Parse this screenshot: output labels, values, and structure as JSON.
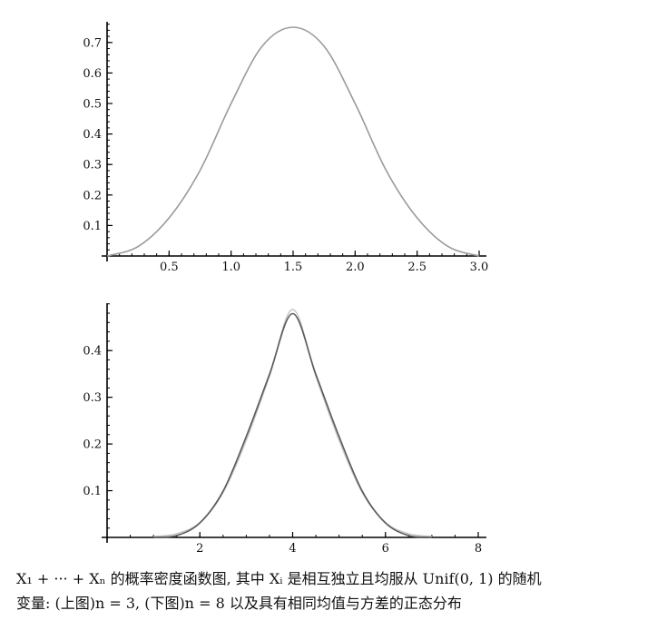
{
  "chart_data": [
    {
      "type": "line",
      "xlim": [
        0,
        3.0
      ],
      "ylim": [
        0,
        0.75
      ],
      "xticks": [
        0.5,
        1.0,
        1.5,
        2.0,
        2.5,
        3.0
      ],
      "xtick_labels": [
        "0.5",
        "1.0",
        "1.5",
        "2.0",
        "2.5",
        "3.0"
      ],
      "yticks": [
        0.1,
        0.2,
        0.3,
        0.4,
        0.5,
        0.6,
        0.7
      ],
      "ytick_labels": [
        "0.1",
        "0.2",
        "0.3",
        "0.4",
        "0.5",
        "0.6",
        "0.7"
      ],
      "grid": false,
      "series": [
        {
          "color": "#9a9a9a",
          "x": [
            0.0,
            0.25,
            0.5,
            0.75,
            1.0,
            1.25,
            1.5,
            1.75,
            2.0,
            2.25,
            2.5,
            2.75,
            3.0
          ],
          "y": [
            0.0,
            0.031,
            0.125,
            0.281,
            0.5,
            0.6875,
            0.75,
            0.6875,
            0.5,
            0.281,
            0.125,
            0.031,
            0.0
          ]
        }
      ]
    },
    {
      "type": "line",
      "xlim": [
        0,
        8
      ],
      "ylim": [
        0,
        0.48
      ],
      "xticks": [
        2,
        4,
        6,
        8
      ],
      "xtick_labels": [
        "2",
        "4",
        "6",
        "8"
      ],
      "yticks": [
        0.1,
        0.2,
        0.3,
        0.4
      ],
      "ytick_labels": [
        "0.1",
        "0.2",
        "0.3",
        "0.4"
      ],
      "grid": false,
      "series": [
        {
          "color": "#5a5a5a",
          "x": [
            1.0,
            1.5,
            2.0,
            2.5,
            3.0,
            3.5,
            4.0,
            4.5,
            5.0,
            5.5,
            6.0,
            6.5,
            7.0
          ],
          "y": [
            0.0,
            0.004,
            0.031,
            0.099,
            0.216,
            0.349,
            0.479,
            0.349,
            0.216,
            0.099,
            0.031,
            0.004,
            0.0
          ]
        },
        {
          "color": "#c4c4c4",
          "x": [
            1.0,
            1.5,
            2.0,
            2.5,
            3.0,
            3.5,
            4.0,
            4.5,
            5.0,
            5.5,
            6.0,
            6.5,
            7.0
          ],
          "y": [
            0.002,
            0.008,
            0.032,
            0.096,
            0.208,
            0.345,
            0.488,
            0.345,
            0.208,
            0.096,
            0.032,
            0.008,
            0.002
          ]
        }
      ]
    }
  ],
  "caption": {
    "line1": "X₁ + ··· + Xₙ 的概率密度函数图, 其中 Xᵢ 是相互独立且均服从 Unif(0, 1) 的随机",
    "line2": "变量: (上图)n = 3, (下图)n = 8 以及具有相同均值与方差的正态分布"
  }
}
